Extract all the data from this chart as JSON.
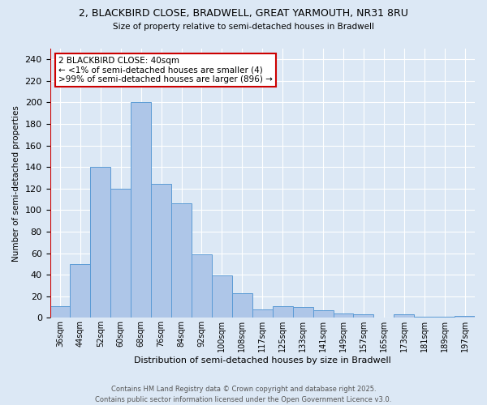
{
  "title1": "2, BLACKBIRD CLOSE, BRADWELL, GREAT YARMOUTH, NR31 8RU",
  "title2": "Size of property relative to semi-detached houses in Bradwell",
  "xlabel": "Distribution of semi-detached houses by size in Bradwell",
  "ylabel": "Number of semi-detached properties",
  "bar_labels": [
    "36sqm",
    "44sqm",
    "52sqm",
    "60sqm",
    "68sqm",
    "76sqm",
    "84sqm",
    "92sqm",
    "100sqm",
    "108sqm",
    "117sqm",
    "125sqm",
    "133sqm",
    "141sqm",
    "149sqm",
    "157sqm",
    "165sqm",
    "173sqm",
    "181sqm",
    "189sqm",
    "197sqm"
  ],
  "bar_values": [
    11,
    50,
    140,
    120,
    200,
    124,
    106,
    59,
    39,
    23,
    8,
    11,
    10,
    7,
    4,
    3,
    0,
    3,
    1,
    1,
    2
  ],
  "bar_color": "#aec6e8",
  "bar_edge_color": "#5b9bd5",
  "ylim": [
    0,
    250
  ],
  "yticks": [
    0,
    20,
    40,
    60,
    80,
    100,
    120,
    140,
    160,
    180,
    200,
    220,
    240
  ],
  "annotation_title": "2 BLACKBIRD CLOSE: 40sqm",
  "annotation_line1": "← <1% of semi-detached houses are smaller (4)",
  "annotation_line2": ">99% of semi-detached houses are larger (896) →",
  "red_line_color": "#cc0000",
  "annotation_box_color": "#ffffff",
  "annotation_box_edge": "#cc0000",
  "footer1": "Contains HM Land Registry data © Crown copyright and database right 2025.",
  "footer2": "Contains public sector information licensed under the Open Government Licence v3.0.",
  "bg_color": "#dce8f5",
  "grid_color": "#ffffff"
}
